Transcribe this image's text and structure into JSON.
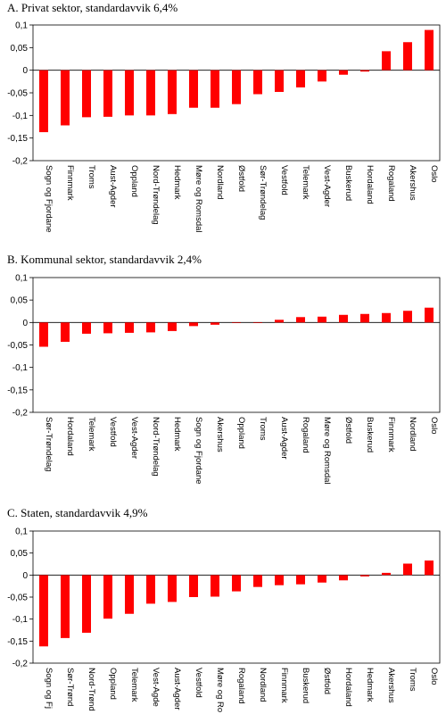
{
  "chart_data": [
    {
      "type": "bar",
      "title": "A. Privat sektor, standardavvik 6,4%",
      "ylim": [
        -0.2,
        0.1
      ],
      "yticks": [
        "0,1",
        "0,05",
        "0",
        "-0,05",
        "-0,1",
        "-0,15",
        "-0,2"
      ],
      "bar_color": "#ff0000",
      "grid": false,
      "categories": [
        "Sogn og Fjordane",
        "Finnmark",
        "Troms",
        "Aust-Agder",
        "Oppland",
        "Nord-Trøndelag",
        "Hedmark",
        "Møre og Romsdal",
        "Nordland",
        "Østfold",
        "Sør-Trøndelag",
        "Vestfold",
        "Telemark",
        "Vest-Agder",
        "Buskerud",
        "Hordaland",
        "Rogaland",
        "Akershus",
        "Oslo"
      ],
      "values": [
        -0.137,
        -0.122,
        -0.104,
        -0.103,
        -0.1,
        -0.1,
        -0.097,
        -0.083,
        -0.083,
        -0.075,
        -0.053,
        -0.048,
        -0.038,
        -0.025,
        -0.01,
        -0.003,
        0.042,
        0.062,
        0.089
      ]
    },
    {
      "type": "bar",
      "title": "B. Kommunal sektor, standardavvik 2,4%",
      "ylim": [
        -0.2,
        0.1
      ],
      "yticks": [
        "0,1",
        "0,05",
        "0",
        "-0,05",
        "-0,1",
        "-0,15",
        "-0,2"
      ],
      "bar_color": "#ff0000",
      "grid": false,
      "categories": [
        "Sør-Trøndelag",
        "Hordaland",
        "Telemark",
        "Vestfold",
        "Vest-Agder",
        "Nord-Trøndelag",
        "Hedmark",
        "Sogn og Fjordane",
        "Akershus",
        "Oppland",
        "Troms",
        "Aust-Agder",
        "Rogaland",
        "Møre og Romsdal",
        "Østfold",
        "Buskerud",
        "Finnmark",
        "Nordland",
        "Oslo"
      ],
      "values": [
        -0.054,
        -0.043,
        -0.025,
        -0.024,
        -0.023,
        -0.022,
        -0.019,
        -0.008,
        -0.005,
        0.0,
        0.0,
        0.006,
        0.012,
        0.013,
        0.017,
        0.019,
        0.021,
        0.026,
        0.033
      ]
    },
    {
      "type": "bar",
      "title": "C. Staten, standardavvik 4,9%",
      "ylim": [
        -0.2,
        0.1
      ],
      "yticks": [
        "0,1",
        "0,05",
        "0",
        "-0,05",
        "-0,1",
        "-0,15",
        "-0,2"
      ],
      "bar_color": "#ff0000",
      "grid": false,
      "categories": [
        "Sogn og Fj",
        "Sør-Trønd",
        "Nord-Trønd",
        "Oppland",
        "Telemark",
        "Vest-Agde",
        "Aust-Agder",
        "Vestfold",
        "Møre og Ro",
        "Rogaland",
        "Nordland",
        "Finnmark",
        "Buskerud",
        "Østfold",
        "Hordaland",
        "Hedmark",
        "Akershus",
        "Troms",
        "Oslo"
      ],
      "values": [
        -0.162,
        -0.143,
        -0.131,
        -0.099,
        -0.088,
        -0.065,
        -0.061,
        -0.05,
        -0.049,
        -0.037,
        -0.027,
        -0.023,
        -0.021,
        -0.017,
        -0.012,
        -0.003,
        0.005,
        0.026,
        0.033
      ]
    }
  ]
}
